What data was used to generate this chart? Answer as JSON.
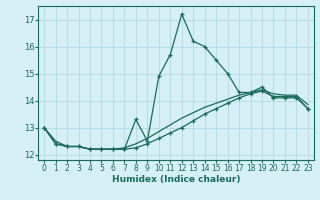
{
  "xlabel": "Humidex (Indice chaleur)",
  "bg_color": "#d6f0f5",
  "grid_color": "#b8dde6",
  "line_color": "#1a6b5a",
  "xlim": [
    -0.5,
    23.5
  ],
  "ylim": [
    11.8,
    17.5
  ],
  "yticks": [
    12,
    13,
    14,
    15,
    16,
    17
  ],
  "xticks": [
    0,
    1,
    2,
    3,
    4,
    5,
    6,
    7,
    8,
    9,
    10,
    11,
    12,
    13,
    14,
    15,
    16,
    17,
    18,
    19,
    20,
    21,
    22,
    23
  ],
  "line1_x": [
    0,
    1,
    2,
    3,
    4,
    5,
    6,
    7,
    8,
    9,
    10,
    11,
    12,
    13,
    14,
    15,
    16,
    17,
    18,
    19,
    20,
    21,
    22,
    23
  ],
  "line1_y": [
    13.0,
    12.4,
    12.3,
    12.3,
    12.2,
    12.2,
    12.2,
    12.2,
    13.3,
    12.5,
    14.9,
    15.7,
    17.2,
    16.2,
    16.0,
    15.5,
    15.0,
    14.3,
    14.3,
    14.5,
    14.1,
    14.1,
    14.1,
    13.7
  ],
  "line2_x": [
    0,
    1,
    2,
    3,
    4,
    5,
    6,
    7,
    8,
    9,
    10,
    11,
    12,
    13,
    14,
    15,
    16,
    17,
    18,
    19,
    20,
    21,
    22,
    23
  ],
  "line2_y": [
    13.0,
    12.4,
    12.3,
    12.3,
    12.2,
    12.2,
    12.2,
    12.2,
    12.25,
    12.4,
    12.6,
    12.8,
    13.0,
    13.25,
    13.5,
    13.7,
    13.9,
    14.1,
    14.25,
    14.35,
    14.15,
    14.15,
    14.15,
    13.7
  ],
  "line3_x": [
    0,
    1,
    2,
    3,
    4,
    5,
    6,
    7,
    8,
    9,
    10,
    11,
    12,
    13,
    14,
    15,
    16,
    17,
    18,
    19,
    20,
    21,
    22,
    23
  ],
  "line3_y": [
    13.0,
    12.5,
    12.3,
    12.3,
    12.2,
    12.2,
    12.2,
    12.25,
    12.4,
    12.6,
    12.85,
    13.1,
    13.35,
    13.55,
    13.75,
    13.9,
    14.05,
    14.2,
    14.3,
    14.4,
    14.25,
    14.2,
    14.2,
    13.85
  ]
}
